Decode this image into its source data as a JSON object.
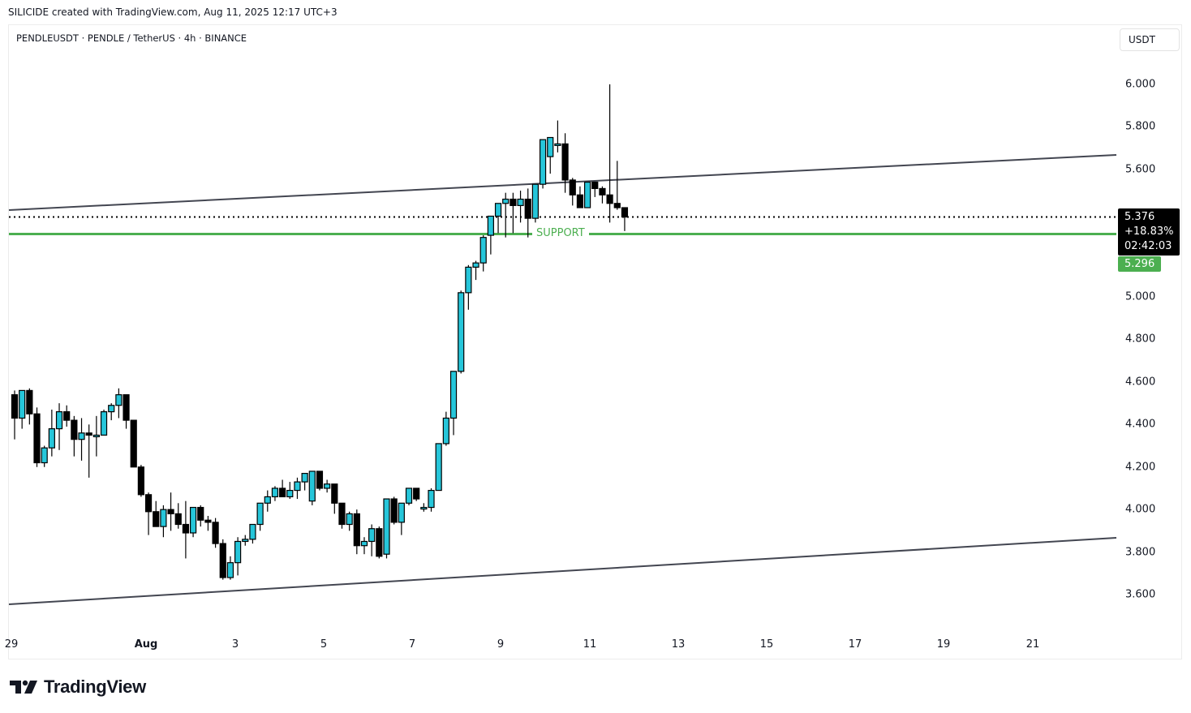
{
  "attribution": "SILICIDE created with TradingView.com, Aug 11, 2025 12:17 UTC+3",
  "symbol_line": "PENDLEUSDT · PENDLE / TetherUS · 4h · BINANCE",
  "currency_button": "USDT",
  "price_tag": {
    "price": "5.376",
    "change": "+18.83%",
    "countdown": "02:42:03"
  },
  "support_tag": "5.296",
  "support_label": "SUPPORT",
  "logo_text": "TradingView",
  "colors": {
    "up": "#26c6da",
    "down": "#000000",
    "support": "#4caf50",
    "channel": "#434651"
  },
  "chart_data": {
    "type": "candlestick",
    "title": "PENDLEUSDT · PENDLE / TetherUS · 4h · BINANCE",
    "xlabel": "",
    "ylabel": "USDT",
    "ylim": [
      3.5,
      6.1
    ],
    "yticks": [
      "6.000",
      "5.800",
      "5.600",
      "5.400",
      "5.200",
      "5.000",
      "4.800",
      "4.600",
      "4.400",
      "4.200",
      "4.000",
      "3.800",
      "3.600"
    ],
    "xticks": [
      "29",
      "Aug",
      "3",
      "5",
      "7",
      "9",
      "11",
      "13",
      "15",
      "17",
      "19",
      "21"
    ],
    "grid": false,
    "current_price": 5.376,
    "change_pct": "+18.83%",
    "support_level": 5.296,
    "channel_upper": {
      "start_price": 5.4,
      "end_price": 5.67
    },
    "channel_lower": {
      "start_price": 3.56,
      "end_price": 3.87
    },
    "candles_ohlc": [
      [
        4.54,
        4.56,
        4.33,
        4.43
      ],
      [
        4.43,
        4.56,
        4.38,
        4.56
      ],
      [
        4.56,
        4.57,
        4.4,
        4.45
      ],
      [
        4.45,
        4.48,
        4.2,
        4.22
      ],
      [
        4.22,
        4.3,
        4.2,
        4.29
      ],
      [
        4.29,
        4.47,
        4.25,
        4.38
      ],
      [
        4.38,
        4.5,
        4.28,
        4.46
      ],
      [
        4.46,
        4.49,
        4.39,
        4.42
      ],
      [
        4.42,
        4.44,
        4.25,
        4.33
      ],
      [
        4.33,
        4.43,
        4.23,
        4.36
      ],
      [
        4.36,
        4.4,
        4.15,
        4.35
      ],
      [
        4.35,
        4.44,
        4.25,
        4.35
      ],
      [
        4.35,
        4.47,
        4.4,
        4.46
      ],
      [
        4.46,
        4.5,
        4.42,
        4.49
      ],
      [
        4.49,
        4.57,
        4.43,
        4.54
      ],
      [
        4.54,
        4.53,
        4.38,
        4.42
      ],
      [
        4.42,
        4.4,
        4.2,
        4.2
      ],
      [
        4.2,
        4.21,
        4.06,
        4.07
      ],
      [
        4.07,
        4.08,
        3.88,
        3.99
      ],
      [
        3.99,
        4.04,
        3.92,
        3.92
      ],
      [
        3.92,
        4.02,
        3.87,
        4.0
      ],
      [
        4.0,
        4.08,
        3.9,
        3.98
      ],
      [
        3.98,
        4.03,
        3.91,
        3.93
      ],
      [
        3.93,
        4.04,
        3.77,
        3.89
      ],
      [
        3.89,
        4.01,
        3.87,
        4.01
      ],
      [
        4.01,
        4.02,
        3.92,
        3.95
      ],
      [
        3.95,
        3.97,
        3.9,
        3.94
      ],
      [
        3.94,
        3.96,
        3.82,
        3.84
      ],
      [
        3.84,
        3.86,
        3.67,
        3.68
      ],
      [
        3.68,
        3.78,
        3.67,
        3.75
      ],
      [
        3.75,
        3.87,
        3.69,
        3.85
      ],
      [
        3.85,
        3.88,
        3.83,
        3.86
      ],
      [
        3.86,
        3.93,
        3.84,
        3.93
      ],
      [
        3.93,
        4.03,
        3.9,
        4.03
      ],
      [
        4.03,
        4.09,
        3.99,
        4.06
      ],
      [
        4.06,
        4.11,
        4.04,
        4.1
      ],
      [
        4.1,
        4.14,
        4.06,
        4.06
      ],
      [
        4.06,
        4.13,
        4.05,
        4.09
      ],
      [
        4.09,
        4.15,
        4.05,
        4.13
      ],
      [
        4.13,
        4.15,
        4.09,
        4.17
      ],
      [
        4.04,
        4.16,
        4.02,
        4.18
      ],
      [
        4.18,
        4.17,
        4.09,
        4.1
      ],
      [
        4.1,
        4.14,
        4.08,
        4.12
      ],
      [
        4.12,
        4.12,
        3.98,
        4.03
      ],
      [
        4.03,
        4.01,
        3.91,
        3.93
      ],
      [
        3.93,
        3.99,
        3.9,
        3.98
      ],
      [
        3.98,
        4.0,
        3.79,
        3.83
      ],
      [
        3.83,
        3.87,
        3.79,
        3.85
      ],
      [
        3.85,
        3.93,
        3.78,
        3.91
      ],
      [
        3.91,
        3.92,
        3.77,
        3.78
      ],
      [
        3.79,
        4.05,
        3.77,
        4.05
      ],
      [
        4.05,
        4.06,
        3.93,
        3.94
      ],
      [
        3.94,
        4.03,
        3.88,
        4.03
      ],
      [
        4.03,
        4.1,
        4.02,
        4.1
      ],
      [
        4.1,
        4.1,
        4.04,
        4.05
      ],
      [
        4.01,
        4.03,
        3.99,
        4.01
      ],
      [
        4.01,
        4.1,
        3.99,
        4.09
      ],
      [
        4.09,
        4.31,
        4.09,
        4.31
      ],
      [
        4.31,
        4.46,
        4.3,
        4.43
      ],
      [
        4.43,
        4.65,
        4.35,
        4.65
      ],
      [
        4.65,
        5.03,
        4.64,
        5.02
      ],
      [
        5.02,
        5.15,
        4.94,
        5.14
      ],
      [
        5.14,
        5.17,
        5.08,
        5.16
      ],
      [
        5.16,
        5.29,
        5.12,
        5.28
      ],
      [
        5.29,
        5.38,
        5.2,
        5.38
      ],
      [
        5.38,
        5.43,
        5.3,
        5.44
      ],
      [
        5.44,
        5.49,
        5.28,
        5.46
      ],
      [
        5.46,
        5.49,
        5.3,
        5.43
      ],
      [
        5.43,
        5.5,
        5.35,
        5.46
      ],
      [
        5.46,
        5.51,
        5.28,
        5.37
      ],
      [
        5.37,
        5.53,
        5.35,
        5.53
      ],
      [
        5.53,
        5.65,
        5.51,
        5.74
      ],
      [
        5.66,
        5.74,
        5.58,
        5.75
      ],
      [
        5.72,
        5.83,
        5.68,
        5.72
      ],
      [
        5.72,
        5.77,
        5.49,
        5.55
      ],
      [
        5.55,
        5.56,
        5.43,
        5.48
      ],
      [
        5.48,
        5.52,
        5.44,
        5.42
      ],
      [
        5.42,
        5.53,
        5.42,
        5.54
      ],
      [
        5.54,
        5.54,
        5.47,
        5.51
      ],
      [
        5.51,
        5.52,
        5.44,
        5.48
      ],
      [
        5.48,
        6.0,
        5.35,
        5.44
      ],
      [
        5.44,
        5.64,
        5.41,
        5.42
      ],
      [
        5.42,
        5.41,
        5.31,
        5.376
      ]
    ]
  }
}
